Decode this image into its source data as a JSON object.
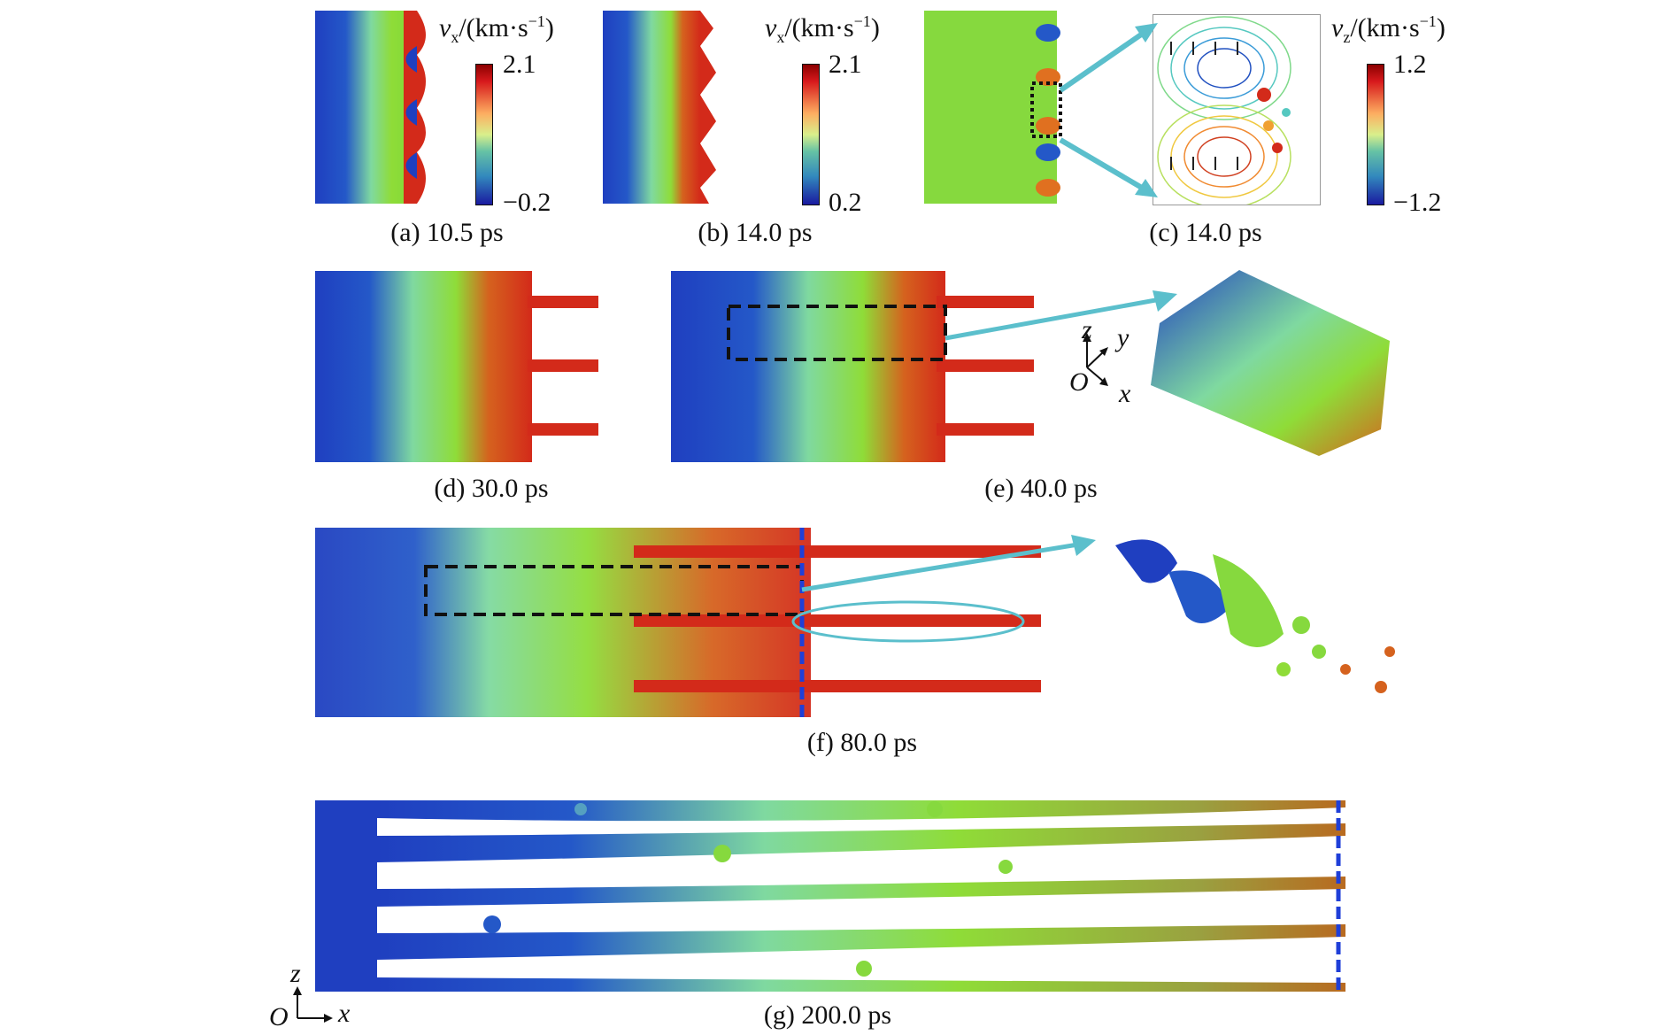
{
  "panels": {
    "a": {
      "label": "(a) 10.5 ps"
    },
    "b": {
      "label": "(b) 14.0 ps"
    },
    "c": {
      "label": "(c) 14.0 ps"
    },
    "d": {
      "label": "(d) 30.0 ps"
    },
    "e": {
      "label": "(e) 40.0 ps"
    },
    "f": {
      "label": "(f) 80.0 ps"
    },
    "g": {
      "label": "(g) 200.0 ps"
    }
  },
  "colorbars": {
    "a": {
      "var": "v",
      "sub": "x",
      "unit": "/(km·s",
      "exp": "−1",
      "close": ")",
      "max": "2.1",
      "min": "−0.2"
    },
    "b": {
      "var": "v",
      "sub": "x",
      "unit": "/(km·s",
      "exp": "−1",
      "close": ")",
      "max": "2.1",
      "min": "0.2"
    },
    "c": {
      "var": "v",
      "sub": "z",
      "unit": "/(km·s",
      "exp": "−1",
      "close": ")",
      "max": "1.2",
      "min": "−1.2"
    }
  },
  "axes3d": {
    "z": "z",
    "y": "y",
    "x": "x",
    "origin": "O"
  },
  "axes2d": {
    "z": "z",
    "x": "x",
    "origin": "O"
  },
  "colors": {
    "blue": "#1f3fc0",
    "green": "#7ed93a",
    "red": "#d32a1a",
    "orange": "#d5621e",
    "cyan_arrow": "#5bbfcc",
    "dash_blue": "#1f3fd8"
  }
}
